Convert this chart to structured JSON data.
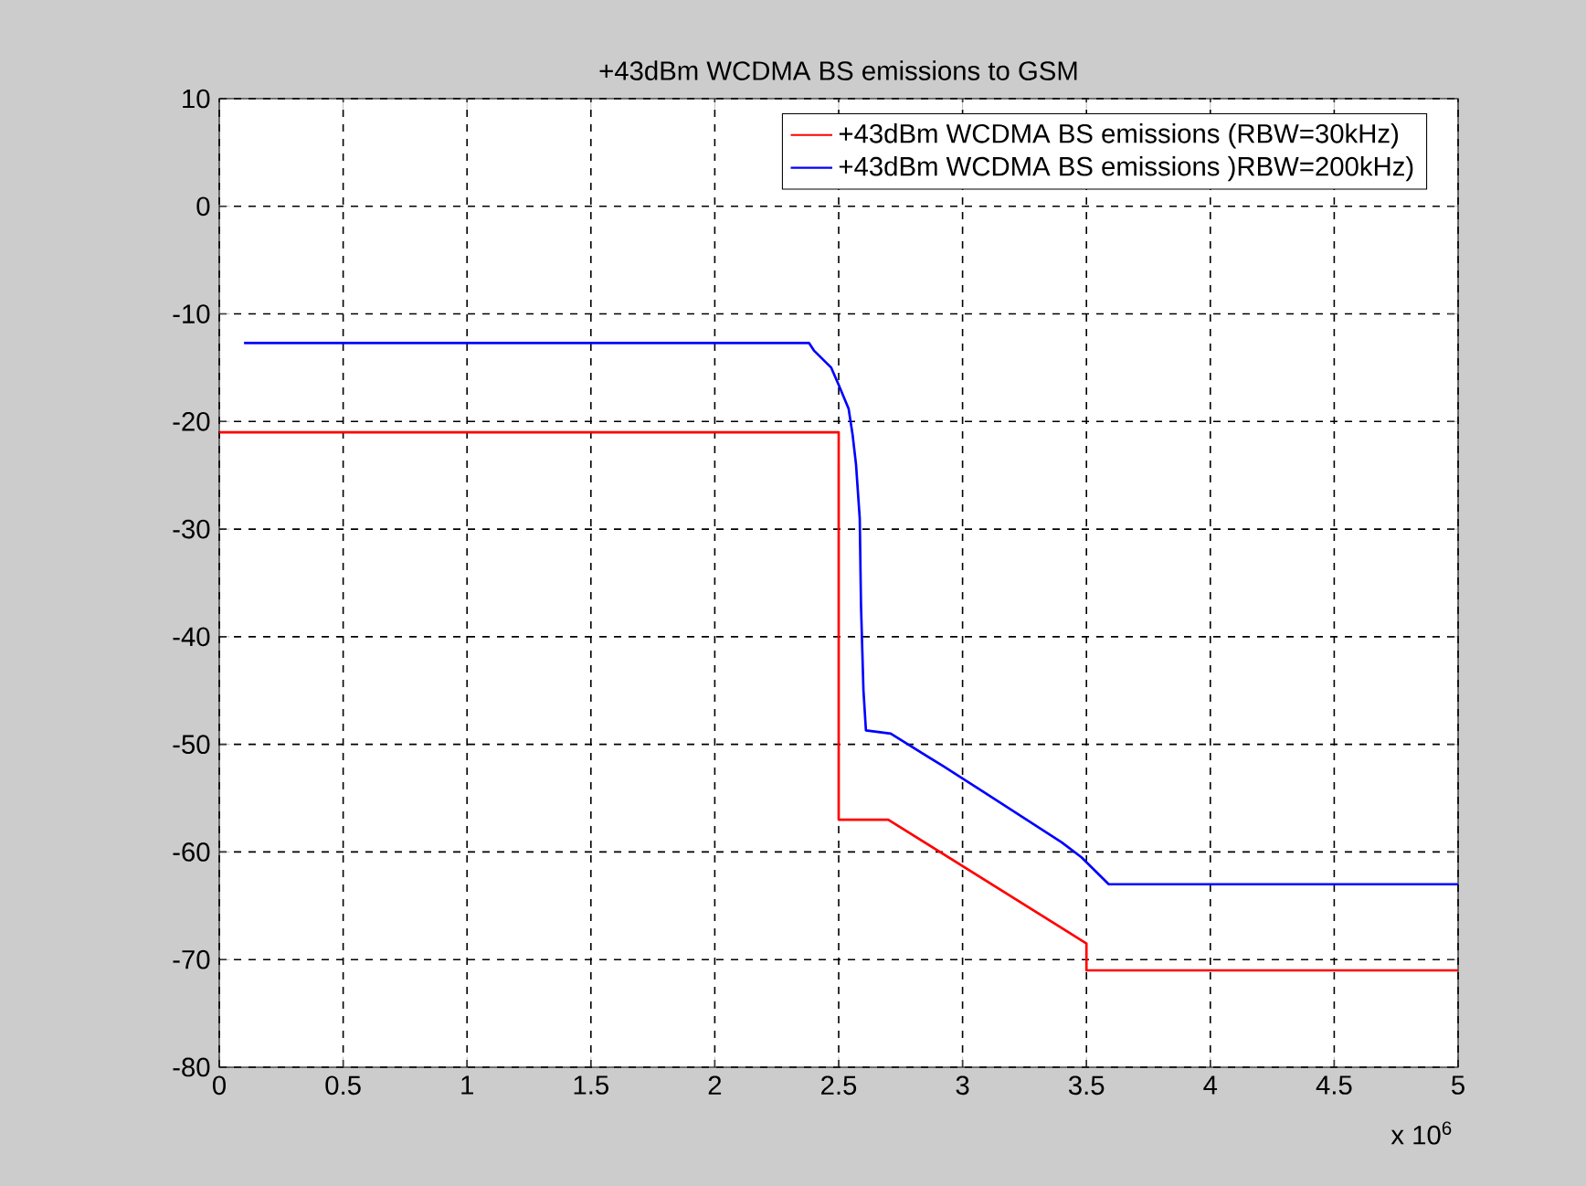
{
  "chart_data": {
    "type": "line",
    "title": "+43dBm WCDMA BS emissions to GSM",
    "series": [
      {
        "name": "+43dBm WCDMA BS emissions (RBW=30kHz)",
        "color": "#ff0000",
        "x": [
          0,
          2.5,
          2.5,
          2.7,
          3.5,
          3.5,
          5
        ],
        "values": [
          -21,
          -21,
          -57,
          -57,
          -68.5,
          -71,
          -71
        ]
      },
      {
        "name": "+43dBm WCDMA BS emissions )RBW=200kHz)",
        "color": "#0000ff",
        "x": [
          0.1,
          2.38,
          2.4,
          2.47,
          2.5,
          2.54,
          2.556,
          2.57,
          2.585,
          2.59,
          2.6,
          2.61,
          2.71,
          2.92,
          3.09,
          3.4,
          3.48,
          3.59,
          5
        ],
        "values": [
          -12.7,
          -12.7,
          -13.4,
          -15,
          -16.6,
          -18.8,
          -21.2,
          -24,
          -29,
          -37,
          -45,
          -48.7,
          -49,
          -52,
          -54.5,
          -59.1,
          -60.5,
          -63,
          -63
        ]
      }
    ],
    "xlim": [
      0,
      5
    ],
    "xticks": [
      0,
      0.5,
      1,
      1.5,
      2,
      2.5,
      3,
      3.5,
      4,
      4.5,
      5
    ],
    "ylim": [
      -80,
      10
    ],
    "yticks": [
      -80,
      -70,
      -60,
      -50,
      -40,
      -30,
      -20,
      -10,
      0,
      10
    ],
    "grid": true,
    "legend": "top right",
    "line_style": "solid",
    "marker": "none",
    "annotations": [
      "x 10$^{6}$"
    ]
  }
}
